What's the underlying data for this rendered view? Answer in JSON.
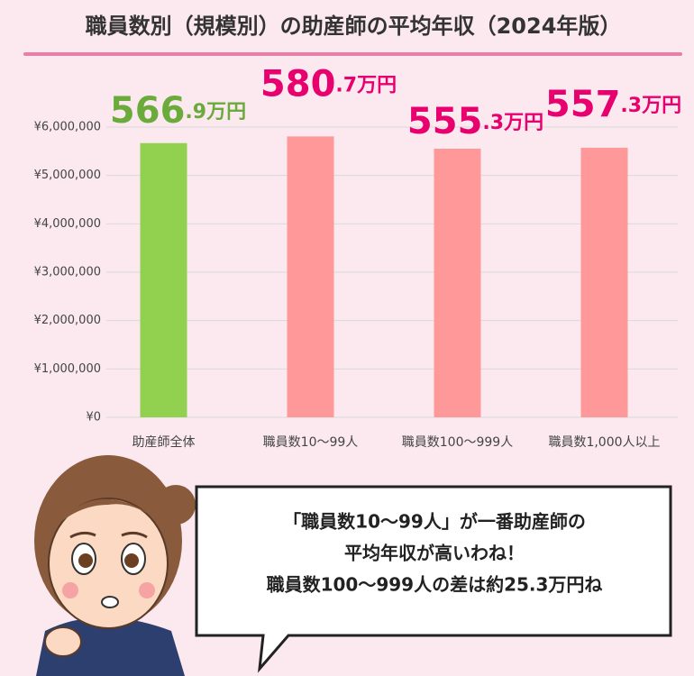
{
  "chart_data": {
    "type": "bar",
    "title": "職員数別（規模別）の助産師の平均年収（2024年版）",
    "categories": [
      "助産師全体",
      "職員数10〜99人",
      "職員数100〜999人",
      "職員数1,000人以上"
    ],
    "values": [
      5669000,
      5807000,
      5553000,
      5573000
    ],
    "value_labels": [
      "566.9万円",
      "580.7万円",
      "555.3万円",
      "557.3万円"
    ],
    "colors": [
      "#92d050",
      "#ff9999",
      "#ff9999",
      "#ff9999"
    ],
    "label_colors": [
      "#6aab3c",
      "#e8006f",
      "#e8006f",
      "#e8006f"
    ],
    "ylim": [
      0,
      6000000
    ],
    "yticks": [
      {
        "value": 0,
        "label": "¥0"
      },
      {
        "value": 1000000,
        "label": "¥1,000,000"
      },
      {
        "value": 2000000,
        "label": "¥2,000,000"
      },
      {
        "value": 3000000,
        "label": "¥3,000,000"
      },
      {
        "value": 4000000,
        "label": "¥4,000,000"
      },
      {
        "value": 5000000,
        "label": "¥5,000,000"
      },
      {
        "value": 6000000,
        "label": "¥6,000,000"
      }
    ],
    "grid": true
  },
  "speech_bubble": {
    "lines": [
      "「職員数10〜99人」が一番助産師の",
      "平均年収が高いわね！",
      "職員数100〜999人の差は約25.3万円ね"
    ]
  }
}
